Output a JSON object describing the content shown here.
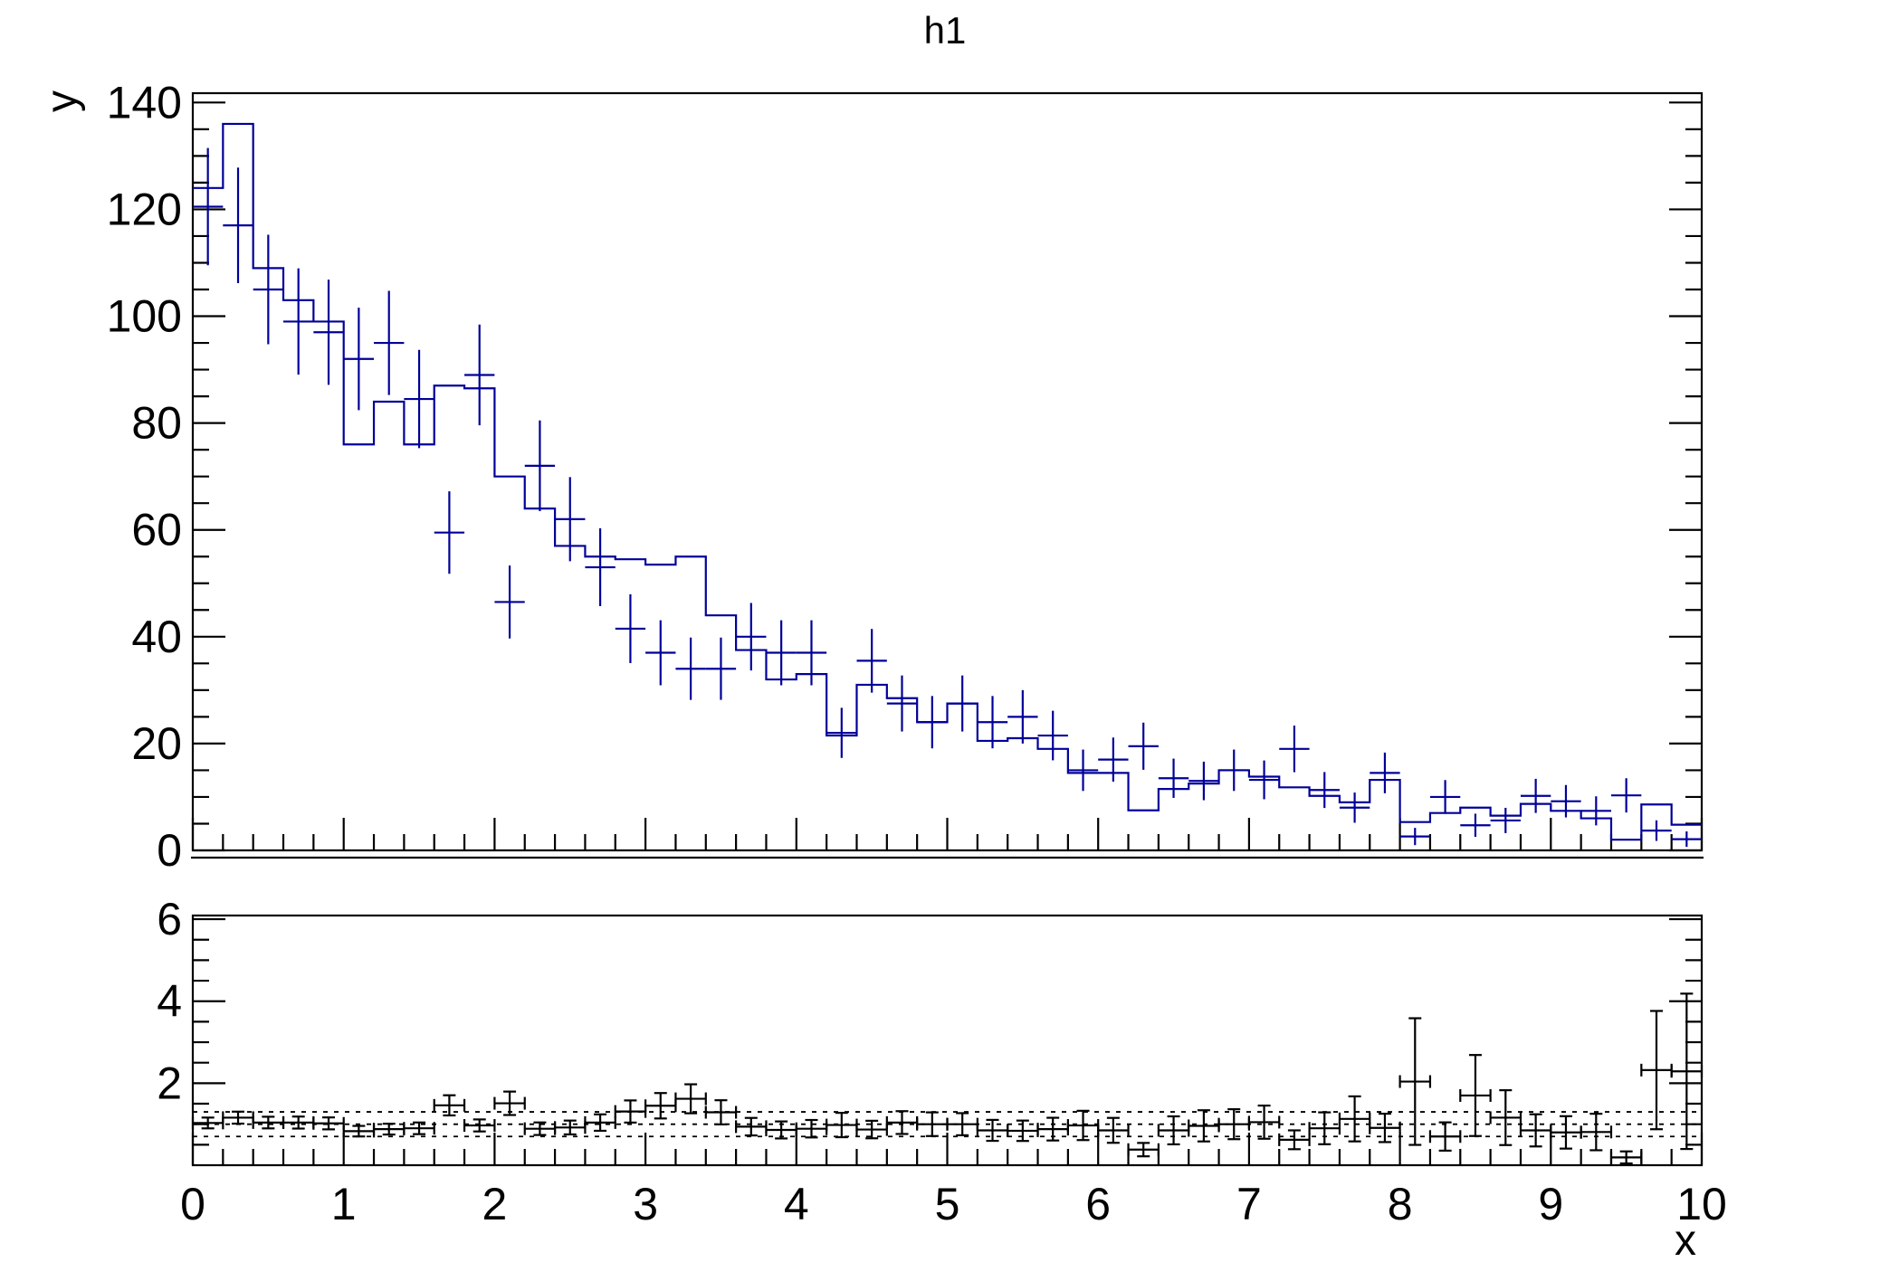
{
  "title": "h1",
  "axes": {
    "x_title": "x",
    "y_title": "y"
  },
  "chart_data": {
    "type": "bar",
    "subtype": "histogram-with-ratio-pad",
    "title": "h1",
    "xlabel": "x",
    "ylabel": "y",
    "xlim": [
      0,
      10
    ],
    "bin_width": 0.2,
    "n_bins": 50,
    "main_panel": {
      "ylim": [
        0,
        141.75
      ],
      "yticks": [
        0,
        20,
        40,
        60,
        80,
        100,
        120,
        140
      ],
      "y_minor_step": 5,
      "grid": false
    },
    "ratio_panel": {
      "ylim": [
        0,
        6.09
      ],
      "yticks": [
        2,
        4,
        6
      ],
      "y_minor_step": 0.5,
      "dotted_gridlines": [
        0.7,
        1.0,
        1.3
      ]
    },
    "xticks": [
      0,
      1,
      2,
      3,
      4,
      5,
      6,
      7,
      8,
      9,
      10
    ],
    "x_minor_step": 0.2,
    "centers": [
      0.1,
      0.3,
      0.5,
      0.7,
      0.9,
      1.1,
      1.3,
      1.5,
      1.7,
      1.9,
      2.1,
      2.3,
      2.5,
      2.7,
      2.9,
      3.1,
      3.3,
      3.5,
      3.7,
      3.9,
      4.1,
      4.3,
      4.5,
      4.7,
      4.9,
      5.1,
      5.3,
      5.5,
      5.7,
      5.9,
      6.1,
      6.3,
      6.5,
      6.7,
      6.9,
      7.1,
      7.3,
      7.5,
      7.7,
      7.9,
      8.1,
      8.3,
      8.5,
      8.7,
      8.9,
      9.1,
      9.3,
      9.5,
      9.7,
      9.9
    ],
    "series": [
      {
        "name": "h1_step_line",
        "style": "step-histogram",
        "color": "#000099",
        "values": [
          124,
          136,
          109,
          103,
          99,
          76,
          84,
          76,
          87,
          86.5,
          70,
          64,
          57,
          55,
          54.5,
          53.5,
          55,
          44,
          37.5,
          32,
          33,
          21.5,
          31,
          28.5,
          24,
          27.5,
          20.5,
          21,
          19,
          14.5,
          14.5,
          7.5,
          11.5,
          12.5,
          15,
          13.8,
          11.8,
          10.2,
          9,
          13.2,
          5.3,
          7,
          8,
          6.5,
          8.7,
          7.4,
          6,
          2,
          8.6,
          4.8
        ]
      },
      {
        "name": "h2_markers",
        "style": "error-cross",
        "color": "#000099",
        "error_model": "sqrt(N)",
        "values": [
          120.5,
          117,
          105,
          99,
          97,
          92,
          95,
          84.5,
          59.5,
          89,
          46.5,
          72,
          62,
          53,
          41.5,
          37,
          34,
          34,
          40,
          37,
          37,
          22,
          35.5,
          27.5,
          24,
          27.5,
          24,
          25,
          21.5,
          15,
          17,
          19.5,
          13.5,
          13,
          15,
          13.2,
          19,
          11.3,
          8,
          14.5,
          2.6,
          10,
          4.7,
          5.6,
          10.2,
          9.2,
          7.4,
          10.3,
          3.7,
          2.1
        ]
      },
      {
        "name": "ratio_h1_over_h2",
        "style": "error-cross-with-caps",
        "color": "#000000",
        "error_model": "r*sqrt(1/h1+1/h2)",
        "values": [
          1.03,
          1.16,
          1.04,
          1.04,
          1.02,
          0.83,
          0.88,
          0.9,
          1.46,
          0.97,
          1.51,
          0.89,
          0.92,
          1.04,
          1.31,
          1.45,
          1.62,
          1.29,
          0.94,
          0.86,
          0.89,
          0.98,
          0.87,
          1.04,
          1.0,
          1.0,
          0.85,
          0.84,
          0.88,
          0.97,
          0.85,
          0.38,
          0.85,
          0.96,
          1.0,
          1.05,
          0.62,
          0.9,
          1.13,
          0.91,
          2.04,
          0.7,
          1.7,
          1.16,
          0.85,
          0.8,
          0.81,
          0.19,
          2.32,
          2.29
        ]
      }
    ],
    "colors": {
      "hist": "#000099",
      "markers": "#000099",
      "ratio_points": "#000000",
      "axis": "#000000",
      "background": "#ffffff"
    },
    "legend": "none"
  }
}
